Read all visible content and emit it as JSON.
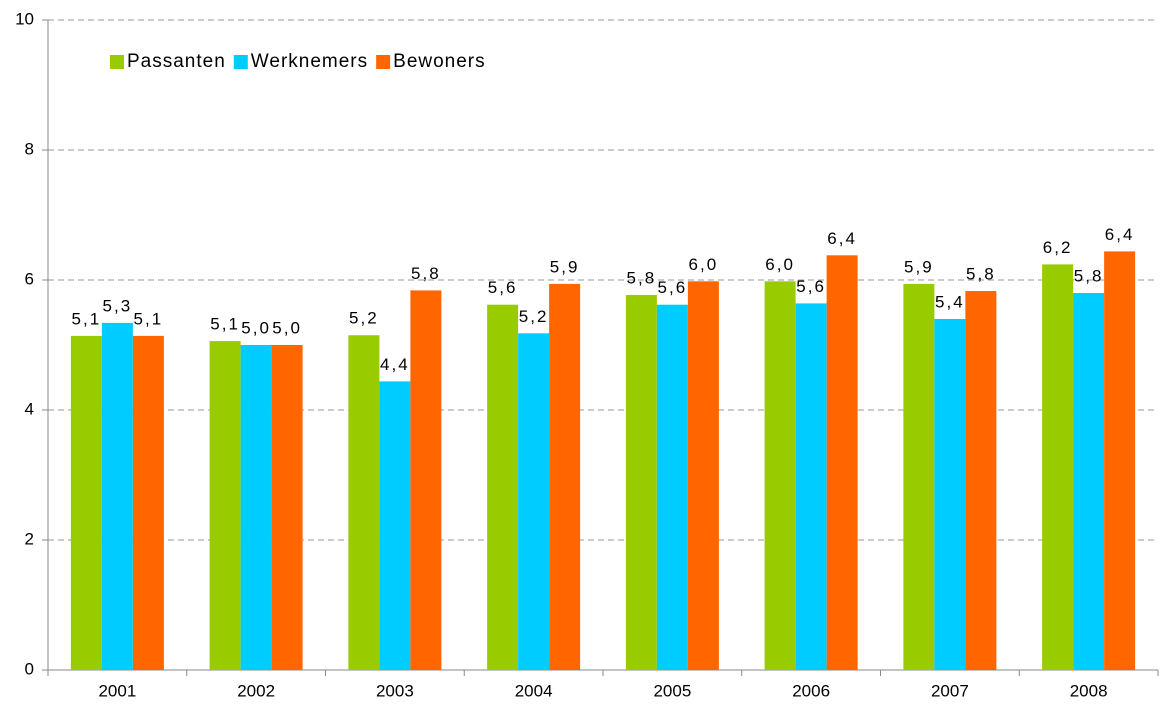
{
  "chart_data": {
    "type": "bar",
    "categories": [
      "2001",
      "2002",
      "2003",
      "2004",
      "2005",
      "2006",
      "2007",
      "2008"
    ],
    "series": [
      {
        "name": "Passanten",
        "color": "#99cc00",
        "values": [
          5.14,
          5.06,
          5.15,
          5.62,
          5.77,
          5.98,
          5.94,
          6.24
        ],
        "value_labels": [
          "5,1",
          "5,1",
          "5,2",
          "5,6",
          "5,8",
          "6,0",
          "5,9",
          "6,2"
        ]
      },
      {
        "name": "Werknemers",
        "color": "#00ccff",
        "values": [
          5.34,
          5.0,
          4.44,
          5.18,
          5.62,
          5.64,
          5.4,
          5.8
        ],
        "value_labels": [
          "5,3",
          "5,0",
          "4,4",
          "5,2",
          "5,6",
          "5,6",
          "5,4",
          "5,8"
        ]
      },
      {
        "name": "Bewoners",
        "color": "#ff6600",
        "values": [
          5.14,
          5.0,
          5.84,
          5.94,
          5.98,
          6.38,
          5.83,
          6.44
        ],
        "value_labels": [
          "5,1",
          "5,0",
          "5,8",
          "5,9",
          "6,0",
          "6,4",
          "5,8",
          "6,4"
        ]
      }
    ],
    "ylim": [
      0,
      10
    ],
    "yticks": [
      0,
      2,
      4,
      6,
      8,
      10
    ],
    "grid": true,
    "legend": "top-left"
  }
}
